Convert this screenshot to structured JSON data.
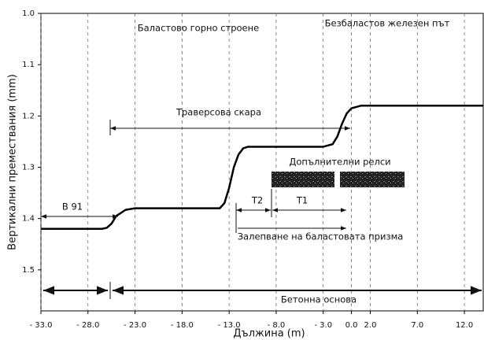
{
  "chart_data": {
    "type": "line",
    "x_label": "Дължина (m)",
    "y_label": "Вертикални премествания (mm)",
    "xlim": [
      -33,
      14
    ],
    "ylim": [
      1.0,
      1.58
    ],
    "y_inverted": true,
    "xticks": [
      {
        "value": -33,
        "label": "- 33.0"
      },
      {
        "value": -28,
        "label": "- 28.0"
      },
      {
        "value": -23,
        "label": "- 23.0"
      },
      {
        "value": -18,
        "label": "- 18.0"
      },
      {
        "value": -13,
        "label": "- 13.0"
      },
      {
        "value": -8,
        "label": "- 8.0"
      },
      {
        "value": -3,
        "label": "- 3.0"
      },
      {
        "value": 0,
        "label": "0.0"
      },
      {
        "value": 2,
        "label": "2.0"
      },
      {
        "value": 7,
        "label": "7.0"
      },
      {
        "value": 12,
        "label": "12.0"
      }
    ],
    "yticks": [
      {
        "value": 1.0,
        "label": "1.0"
      },
      1.1,
      1.2,
      1.3,
      1.4,
      1.5
    ],
    "grid": true,
    "x": [
      -33,
      -26.5,
      -26,
      -25.5,
      -25,
      -24,
      -23,
      -14,
      -13.5,
      -13,
      -12.5,
      -12,
      -11.5,
      -11,
      -3,
      -2,
      -1.5,
      -1,
      -0.5,
      0,
      1,
      14
    ],
    "series": [
      {
        "color": "#000000",
        "values": [
          1.42,
          1.42,
          1.418,
          1.41,
          1.395,
          1.383,
          1.38,
          1.38,
          1.37,
          1.34,
          1.3,
          1.275,
          1.263,
          1.26,
          1.26,
          1.255,
          1.24,
          1.215,
          1.195,
          1.185,
          1.18,
          1.18
        ]
      }
    ],
    "annotations": {
      "ballast": "Баластово горно строене",
      "ballastless": "Безбаластов железен път",
      "sleeper": "Траверсова скара",
      "rails": "Допълнителни релси",
      "b91": "B 91",
      "t2": "T2",
      "t1": "T1",
      "glue": "Залепване на баластовата призма",
      "concrete": "Бетонна основа"
    }
  }
}
